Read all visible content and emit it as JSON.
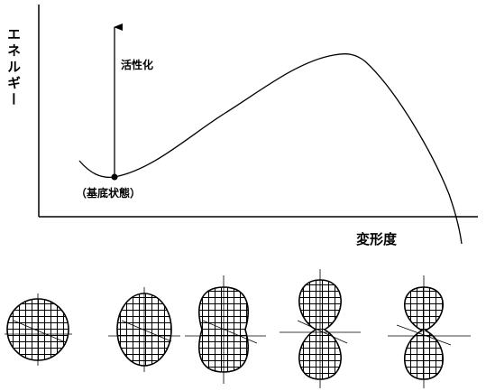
{
  "axis": {
    "y_label": "エネルギー",
    "x_label": "変形度"
  },
  "annotations": {
    "activation": "活性化",
    "ground_state": "（基底状態）"
  }
}
